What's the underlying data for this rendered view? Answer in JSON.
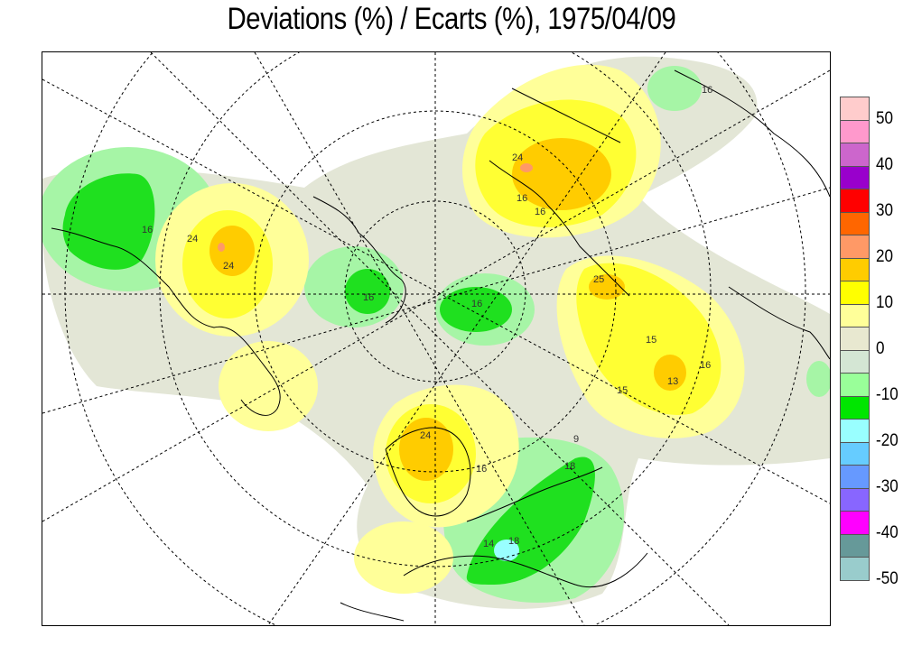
{
  "title": "Deviations (%) / Ecarts (%), 1975/04/09",
  "legend": {
    "ticks": [
      "50",
      "40",
      "30",
      "20",
      "10",
      "0",
      "-10",
      "-20",
      "-30",
      "-40",
      "-50"
    ],
    "colors": [
      "#ffcccc",
      "#ff99cc",
      "#cc66cc",
      "#9900cc",
      "#ff0000",
      "#ff6600",
      "#ff9966",
      "#ffcc00",
      "#ffff00",
      "#ffff99",
      "#e8e8d0",
      "#d4e6d4",
      "#99ff99",
      "#00e600",
      "#99ffff",
      "#66ccff",
      "#6699ff",
      "#8866ff",
      "#ff00ff",
      "#669999",
      "#99cccc"
    ]
  },
  "map": {
    "projection": "polar stereographic (north pole)",
    "contour_labels": [
      "16",
      "24",
      "24",
      "16",
      "16",
      "16",
      "16",
      "24",
      "16",
      "25",
      "15",
      "16",
      "13",
      "15",
      "24",
      "16",
      "14",
      "18",
      "18",
      "9"
    ],
    "colors": {
      "neutral": "#e3e6d6",
      "light_green": "#a6f5a6",
      "green": "#1fe01f",
      "light_yellow": "#ffff99",
      "yellow": "#ffff33",
      "orange": "#ffcc00",
      "salmon": "#ff9966",
      "cyan": "#99ffff"
    }
  }
}
